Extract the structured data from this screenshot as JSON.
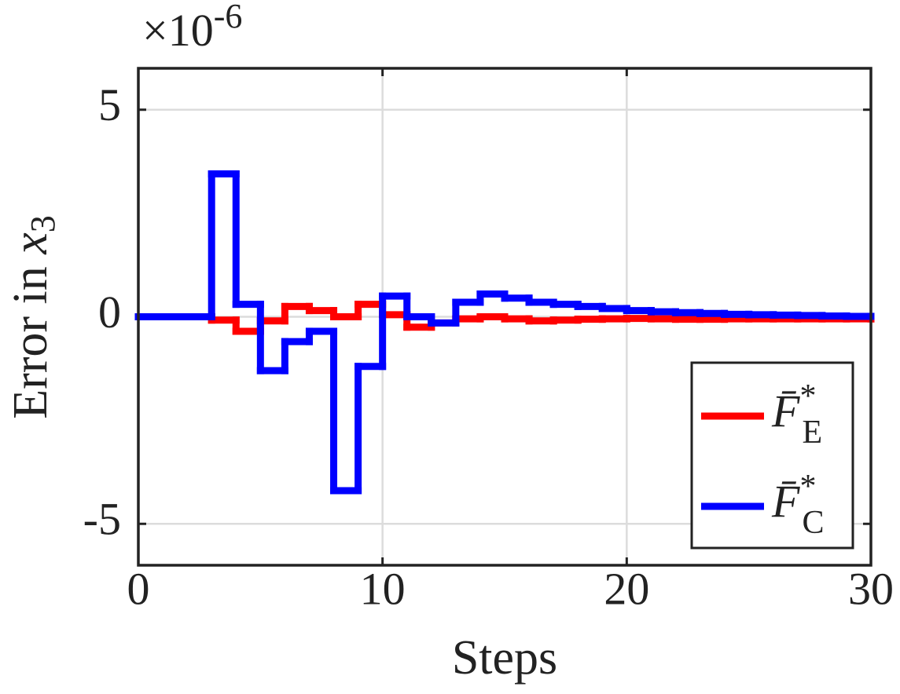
{
  "chart_data": {
    "type": "stairs",
    "xlabel": "Steps",
    "ylabel_text": "Error in ",
    "ylabel_var": "x",
    "ylabel_sub": "3",
    "y_multiplier_base": "×10",
    "y_multiplier_exp": "-6",
    "x": [
      0,
      1,
      2,
      3,
      4,
      5,
      6,
      7,
      8,
      9,
      10,
      11,
      12,
      13,
      14,
      15,
      16,
      17,
      18,
      19,
      20,
      21,
      22,
      23,
      24,
      25,
      26,
      27,
      28,
      29,
      30
    ],
    "series": [
      {
        "name": "F̄",
        "superscript": "*",
        "subscript": "E",
        "color": "#ff0000",
        "values": [
          0,
          0,
          0,
          -0.08,
          -0.35,
          -0.1,
          0.25,
          0.15,
          0,
          0.3,
          0.05,
          -0.25,
          -0.15,
          -0.05,
          0,
          -0.05,
          -0.1,
          -0.08,
          -0.06,
          -0.05,
          -0.04,
          -0.05,
          -0.06,
          -0.06,
          -0.05,
          -0.05,
          -0.05,
          -0.05,
          -0.05,
          -0.05,
          -0.05
        ]
      },
      {
        "name": "F̄",
        "superscript": "*",
        "subscript": "C",
        "color": "#0000ff",
        "values": [
          0,
          0,
          0,
          3.45,
          0.3,
          -1.3,
          -0.6,
          -0.35,
          -4.2,
          -1.2,
          0.5,
          0,
          -0.15,
          0.35,
          0.55,
          0.45,
          0.35,
          0.3,
          0.25,
          0.2,
          0.15,
          0.12,
          0.1,
          0.08,
          0.06,
          0.05,
          0.04,
          0.03,
          0.02,
          0.01,
          0.01
        ]
      }
    ],
    "xlim": [
      0,
      30
    ],
    "xticks": [
      0,
      10,
      20,
      30
    ],
    "ylim": [
      -6,
      6
    ],
    "yticks": [
      -5,
      0,
      5
    ],
    "grid": true,
    "legend_position": "southeast"
  }
}
